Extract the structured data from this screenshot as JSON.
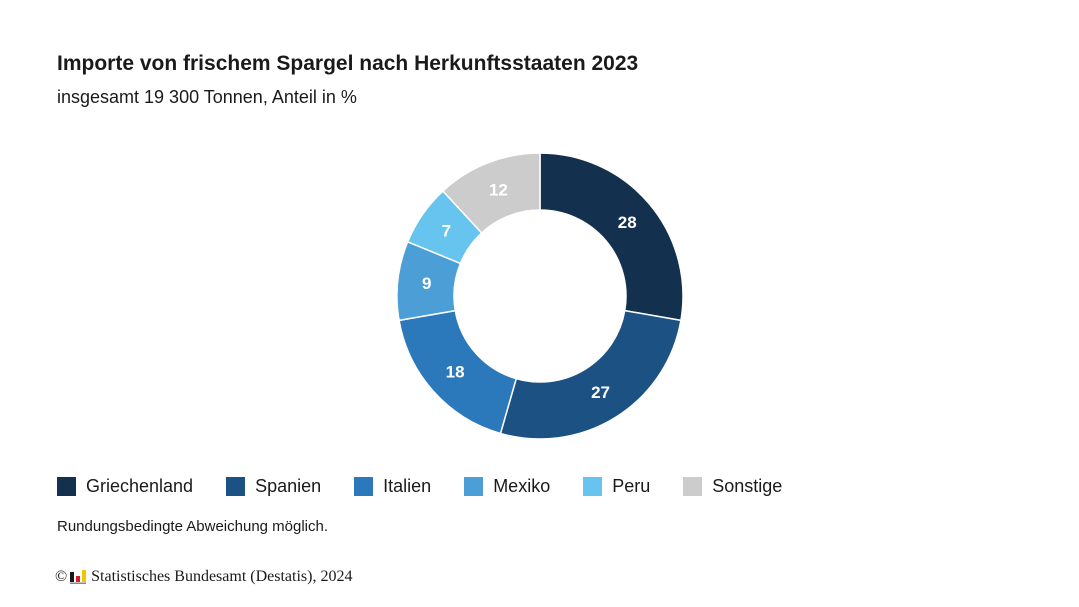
{
  "header": {
    "title": "Importe von frischem Spargel nach Herkunftsstaaten 2023",
    "subtitle": "insgesamt 19 300 Tonnen, Anteil in %"
  },
  "chart_data": {
    "type": "pie",
    "variant": "donut",
    "title": "Importe von frischem Spargel nach Herkunftsstaaten 2023",
    "subtitle": "insgesamt 19 300 Tonnen, Anteil in %",
    "categories": [
      "Griechenland",
      "Spanien",
      "Italien",
      "Mexiko",
      "Peru",
      "Sonstige"
    ],
    "values": [
      28,
      27,
      18,
      9,
      7,
      12
    ],
    "colors": [
      "#14304f",
      "#1b5283",
      "#2b78bb",
      "#4c9fd6",
      "#67c4ef",
      "#cccccc"
    ],
    "label_colors": [
      "#ffffff",
      "#ffffff",
      "#ffffff",
      "#ffffff",
      "#ffffff",
      "#ffffff"
    ],
    "legend_position": "bottom"
  },
  "footer": {
    "note": "Rundungsbedingte Abweichung möglich.",
    "copyright_symbol": "©",
    "source": "Statistisches Bundesamt (Destatis), 2024",
    "logo_icon": "destatis-logo-icon"
  }
}
